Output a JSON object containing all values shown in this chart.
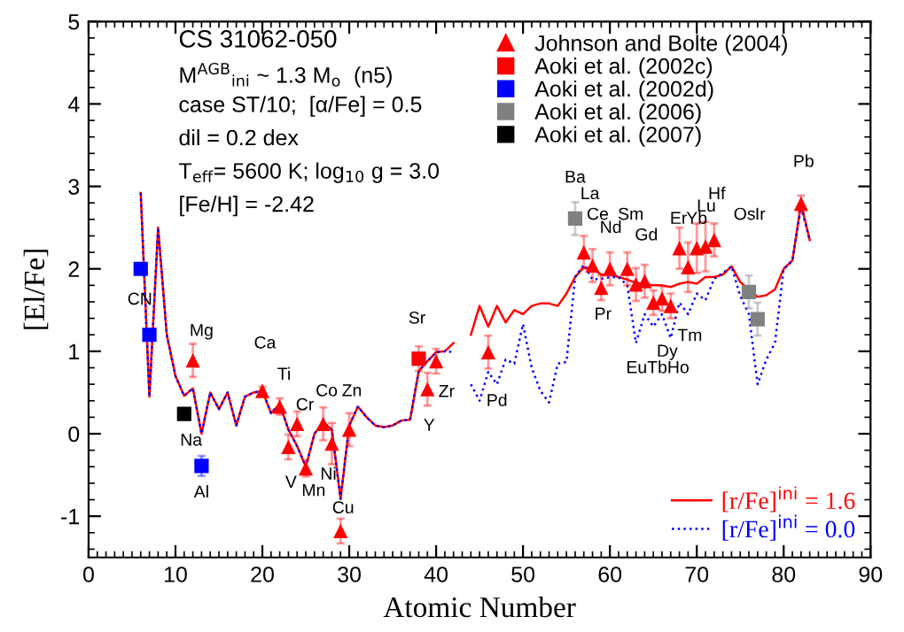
{
  "chart_data": {
    "type": "scatter",
    "title": "CS 31062-050",
    "xlabel": "Atomic Number",
    "ylabel": "[El/Fe]",
    "xlim": [
      0,
      90
    ],
    "xticks": [
      0,
      10,
      20,
      30,
      40,
      50,
      60,
      70,
      80,
      90
    ],
    "ylim": [
      -1.5,
      5
    ],
    "yticks": [
      -1,
      0,
      1,
      2,
      3,
      4,
      5
    ],
    "grid": false,
    "legend": "top right",
    "annotations": [
      "M$^{AGB}$$_{ini}$ ~ 1.3 M$_{o}$  (n5)",
      "case ST/10;  [α/Fe] = 0.5",
      "dil = 0.2 dex",
      "T$_{eff}$= 5600 K; log$_{10}$ g = 3.0",
      "[Fe/H] = -2.42",
      "CN",
      "Mg",
      "Na",
      "Al",
      "Ca",
      "Ti",
      "Cr",
      "V",
      "Mn",
      "Co",
      "Ni",
      "Zn",
      "Cu",
      "Sr",
      "Zr",
      "Y",
      "Pd",
      "Ba",
      "La",
      "Ce",
      "Nd",
      "Sm",
      "Gd",
      "Er",
      "Yb",
      "Lu",
      "Hf",
      "Os",
      "Ir",
      "Pr",
      "Tm",
      "Dy",
      "EuTbHo",
      "Pb"
    ],
    "series": [
      {
        "name": "[r/Fe]$^{ini}$ = 1.6",
        "type": "line",
        "line_style": "solid",
        "marker": "none",
        "color": "#ff0000",
        "x": [
          6,
          7,
          8,
          9,
          10,
          11,
          12,
          13,
          14,
          15,
          16,
          17,
          18,
          19,
          20,
          21,
          22,
          23,
          24,
          25,
          26,
          27,
          28,
          29,
          30,
          31,
          32,
          33,
          34,
          35,
          36,
          37,
          38,
          39,
          40,
          41,
          42,
          43,
          44,
          45,
          46,
          47,
          48,
          49,
          50,
          51,
          52,
          53,
          54,
          55,
          56,
          57,
          58,
          59,
          60,
          61,
          62,
          63,
          64,
          65,
          66,
          67,
          68,
          69,
          70,
          71,
          72,
          73,
          74,
          75,
          76,
          77,
          78,
          79,
          80,
          81,
          82,
          83
        ],
        "values": [
          2.92,
          0.45,
          2.5,
          1.2,
          0.7,
          0.46,
          0.55,
          0.0,
          0.5,
          0.3,
          0.5,
          0.1,
          0.45,
          0.5,
          0.52,
          0.25,
          0.36,
          0.05,
          -0.15,
          -0.4,
          0.0,
          0.14,
          0.05,
          -0.79,
          0.1,
          0.33,
          0.2,
          0.1,
          0.08,
          0.1,
          0.16,
          0.17,
          0.76,
          0.88,
          0.99,
          1.0,
          1.1,
          null,
          1.2,
          1.55,
          1.3,
          1.55,
          1.35,
          1.5,
          1.45,
          1.55,
          1.58,
          1.58,
          1.55,
          1.7,
          1.9,
          2.02,
          2.0,
          1.93,
          1.93,
          1.9,
          1.87,
          1.83,
          1.82,
          1.8,
          1.8,
          1.78,
          1.82,
          1.84,
          1.82,
          1.9,
          1.9,
          1.93,
          2.03,
          1.84,
          1.75,
          1.66,
          1.68,
          1.75,
          2.0,
          2.1,
          2.79,
          2.35
        ]
      },
      {
        "name": "[r/Fe]$^{ini}$ = 0.0",
        "type": "line",
        "line_style": "dotted",
        "marker": "none",
        "color": "#0000ff",
        "x": [
          6,
          7,
          8,
          9,
          10,
          11,
          12,
          13,
          14,
          15,
          16,
          17,
          18,
          19,
          20,
          21,
          22,
          23,
          24,
          25,
          26,
          27,
          28,
          29,
          30,
          31,
          32,
          33,
          34,
          35,
          36,
          37,
          38,
          39,
          40,
          41,
          42,
          43,
          44,
          45,
          46,
          47,
          48,
          49,
          50,
          51,
          52,
          53,
          54,
          55,
          56,
          57,
          58,
          59,
          60,
          61,
          62,
          63,
          64,
          65,
          66,
          67,
          68,
          69,
          70,
          71,
          72,
          73,
          74,
          75,
          76,
          77,
          78,
          79,
          80,
          81,
          82,
          83
        ],
        "values": [
          2.92,
          0.45,
          2.5,
          1.2,
          0.7,
          0.46,
          0.55,
          0.0,
          0.5,
          0.3,
          0.5,
          0.1,
          0.45,
          0.5,
          0.52,
          0.25,
          0.36,
          0.05,
          -0.15,
          -0.4,
          0.0,
          0.14,
          0.05,
          -0.79,
          0.1,
          0.33,
          0.2,
          0.1,
          0.08,
          0.1,
          0.16,
          0.17,
          0.76,
          0.88,
          0.99,
          1.0,
          0.99,
          null,
          0.6,
          0.4,
          0.75,
          0.6,
          0.9,
          0.85,
          1.33,
          0.8,
          0.52,
          0.38,
          0.85,
          0.87,
          1.9,
          2.05,
          1.87,
          1.88,
          1.9,
          1.9,
          1.8,
          1.1,
          1.45,
          1.3,
          1.45,
          1.16,
          1.59,
          1.45,
          1.7,
          1.62,
          1.88,
          1.95,
          2.03,
          1.67,
          1.45,
          0.6,
          0.9,
          1.1,
          2.0,
          2.1,
          2.75,
          2.35
        ]
      },
      {
        "name": "Johnson and Bolte (2004)",
        "marker": "triangle",
        "color": "#ff0000",
        "x": [
          12,
          20,
          22,
          23,
          24,
          25,
          27,
          28,
          29,
          30,
          39,
          40,
          46,
          57,
          58,
          59,
          60,
          62,
          63,
          64,
          65,
          66,
          67,
          68,
          69,
          70,
          71,
          72,
          82
        ],
        "values": [
          0.89,
          0.52,
          0.33,
          -0.16,
          0.12,
          -0.42,
          0.12,
          -0.12,
          -1.18,
          0.05,
          0.54,
          0.88,
          0.99,
          2.2,
          2.04,
          1.77,
          2.0,
          2.0,
          1.81,
          1.85,
          1.59,
          1.64,
          1.55,
          2.25,
          2.02,
          2.25,
          2.27,
          2.35,
          2.79
        ],
        "errors": [
          0.2,
          0.05,
          0.1,
          0.15,
          0.15,
          0.1,
          0.2,
          0.25,
          0.15,
          0.2,
          0.2,
          0.15,
          0.2,
          0.2,
          0.2,
          0.15,
          0.2,
          0.2,
          0.2,
          0.2,
          0.15,
          0.15,
          0.15,
          0.25,
          0.3,
          0.3,
          0.3,
          0.2,
          0.1
        ]
      },
      {
        "name": "Aoki et al. (2002c)",
        "marker": "square",
        "color": "#ff0000",
        "x": [
          38
        ],
        "values": [
          0.91
        ],
        "errors": [
          0.15
        ]
      },
      {
        "name": "Aoki et al. (2002d)",
        "marker": "square",
        "color": "#0000ff",
        "x": [
          6,
          7,
          13
        ],
        "values": [
          2.0,
          1.2,
          -0.39
        ],
        "errors": [
          null,
          null,
          0.12
        ]
      },
      {
        "name": "Aoki et al. (2006)",
        "marker": "square",
        "color": "#808080",
        "x": [
          56,
          76,
          77
        ],
        "values": [
          2.61,
          1.72,
          1.39
        ],
        "errors": [
          0.2,
          0.2,
          0.2
        ]
      },
      {
        "name": "Aoki et al. (2007)",
        "marker": "square",
        "color": "#000000",
        "x": [
          11
        ],
        "values": [
          0.24
        ]
      }
    ]
  }
}
